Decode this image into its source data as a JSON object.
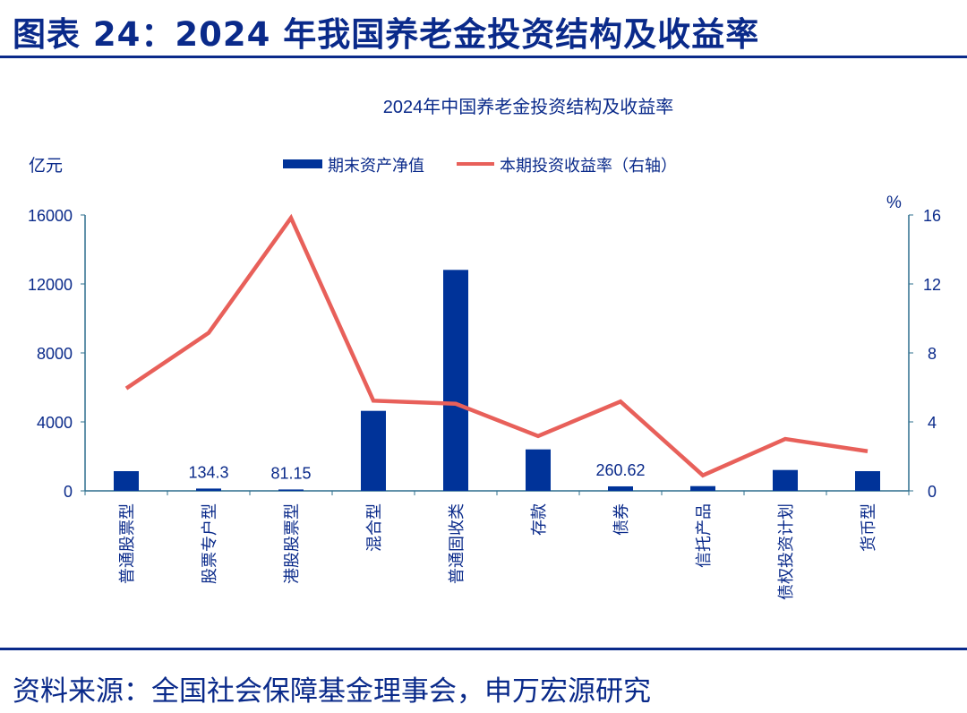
{
  "figure_title": "图表 24：2024 年我国养老金投资结构及收益率",
  "source": "资料来源：全国社会保障基金理事会，申万宏源研究",
  "chart_data": {
    "type": "bar+line",
    "title": "2024年中国养老金投资结构及收益率",
    "ylabel_left": "亿元",
    "ylabel_right": "%",
    "ylim_left": [
      0,
      16000
    ],
    "ylim_right": [
      0,
      16
    ],
    "yticks_left": [
      "0",
      "4000",
      "8000",
      "12000",
      "16000"
    ],
    "yticks_right": [
      "0",
      "4",
      "8",
      "12",
      "16"
    ],
    "grid": false,
    "legend_position": "top",
    "categories": [
      "普通股票型",
      "股票专户型",
      "港股股票型",
      "混合型",
      "普通固收类",
      "存款",
      "债券",
      "信托产品",
      "债权投资计划",
      "货币型"
    ],
    "series": [
      {
        "name": "期末资产净值",
        "type": "bar",
        "axis": "left",
        "color": "#003399",
        "values": [
          1143,
          134.3,
          81.15,
          4640,
          12815,
          2405,
          260.62,
          275,
          1210,
          1143
        ],
        "data_labels": [
          null,
          "134.3",
          "81.15",
          null,
          null,
          null,
          "260.62",
          null,
          null,
          null
        ]
      },
      {
        "name": "本期投资收益率（右轴）",
        "type": "line",
        "axis": "right",
        "color": "#e8605a",
        "values": [
          5.94,
          9.16,
          15.83,
          5.23,
          5.05,
          3.18,
          5.18,
          0.9,
          3.01,
          2.3
        ]
      }
    ]
  }
}
